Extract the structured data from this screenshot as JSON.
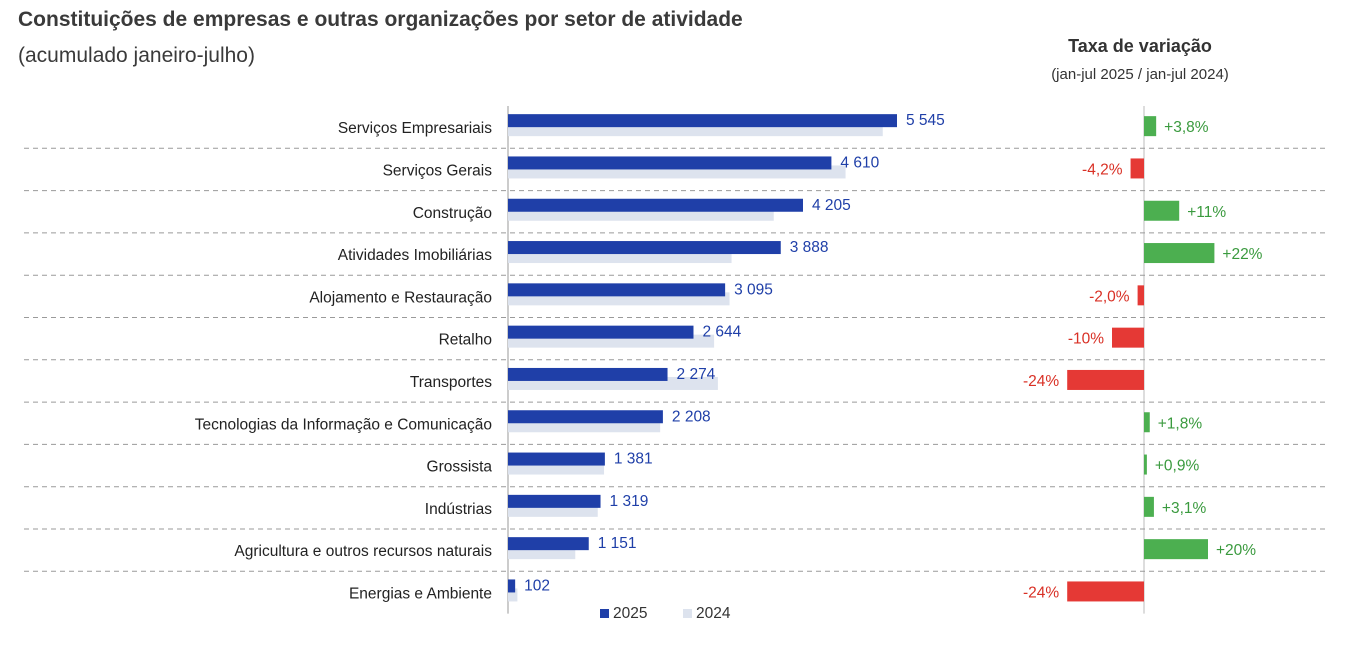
{
  "header": {
    "title": "Constituições de empresas e outras organizações por setor de atividade",
    "subtitle": "(acumulado janeiro-julho)",
    "rate_title": "Taxa de variação",
    "rate_subtitle": "(jan-jul 2025 / jan-jul 2024)"
  },
  "colors": {
    "series_2025": "#1f3fa8",
    "series_2024": "#dde3ee",
    "positive": "#4caf50",
    "negative": "#e53935",
    "positive_text": "#3a9a3e",
    "negative_text": "#d93025"
  },
  "chart_data": [
    {
      "type": "bar",
      "orientation": "horizontal",
      "categories": [
        "Serviços Empresariais",
        "Serviços Gerais",
        "Construção",
        "Atividades Imobiliárias",
        "Alojamento e Restauração",
        "Retalho",
        "Transportes",
        "Tecnologias da Informação e Comunicação",
        "Grossista",
        "Indústrias",
        "Agricultura e outros recursos naturais",
        "Energias e Ambiente"
      ],
      "series": [
        {
          "name": "2025",
          "values": [
            5545,
            4610,
            4205,
            3888,
            3095,
            2644,
            2274,
            2208,
            1381,
            1319,
            1151,
            102
          ]
        },
        {
          "name": "2024",
          "values": [
            5342,
            4812,
            3788,
            3187,
            3158,
            2938,
            2992,
            2169,
            1369,
            1279,
            959,
            134
          ]
        }
      ],
      "value_labels": [
        "5 545",
        "4 610",
        "4 205",
        "3 888",
        "3 095",
        "2 644",
        "2 274",
        "2 208",
        "1 381",
        "1 319",
        "1 151",
        "102"
      ],
      "xlim": [
        0,
        7000
      ],
      "legend": {
        "placement": "bottom",
        "items": [
          "2025",
          "2024"
        ]
      },
      "grid": false
    },
    {
      "type": "bar",
      "orientation": "horizontal",
      "title": "Taxa de variação",
      "subtitle": "(jan-jul 2025 / jan-jul 2024)",
      "values": [
        3.8,
        -4.2,
        11,
        22,
        -2.0,
        -10,
        -24,
        1.8,
        0.9,
        3.1,
        20,
        -24
      ],
      "labels": [
        "+3,8%",
        "-4,2%",
        "+11%",
        "+22%",
        "-2,0%",
        "-10%",
        "-24%",
        "+1,8%",
        "+0,9%",
        "+3,1%",
        "+20%",
        "-24%"
      ],
      "unit": "%"
    }
  ]
}
